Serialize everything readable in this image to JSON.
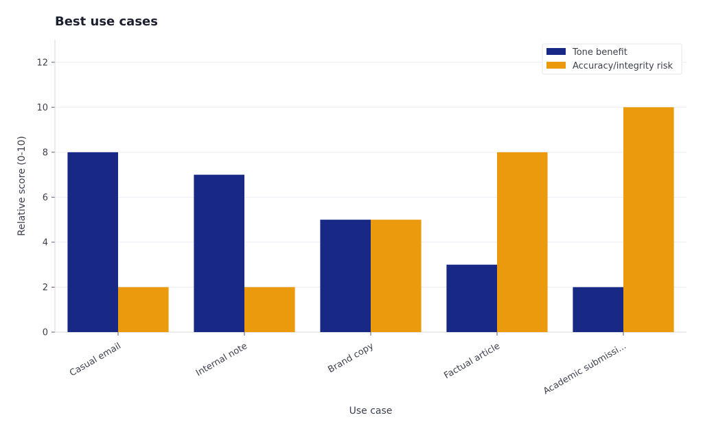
{
  "chart_data": {
    "type": "bar",
    "title": "Best use cases",
    "xlabel": "Use case",
    "ylabel": "Relative score (0-10)",
    "categories": [
      "Casual email",
      "Internal note",
      "Brand copy",
      "Factual article",
      "Academic submissi..."
    ],
    "series": [
      {
        "name": "Tone benefit",
        "values": [
          8,
          7,
          5,
          3,
          2
        ],
        "color": "#172984"
      },
      {
        "name": "Accuracy/integrity risk",
        "values": [
          2,
          2,
          5,
          8,
          10
        ],
        "color": "#ea9a0c"
      }
    ],
    "ylim": [
      0,
      13
    ],
    "yticks": [
      0,
      2,
      4,
      6,
      8,
      10,
      12
    ],
    "grid": true,
    "legend_position": "top-right"
  }
}
